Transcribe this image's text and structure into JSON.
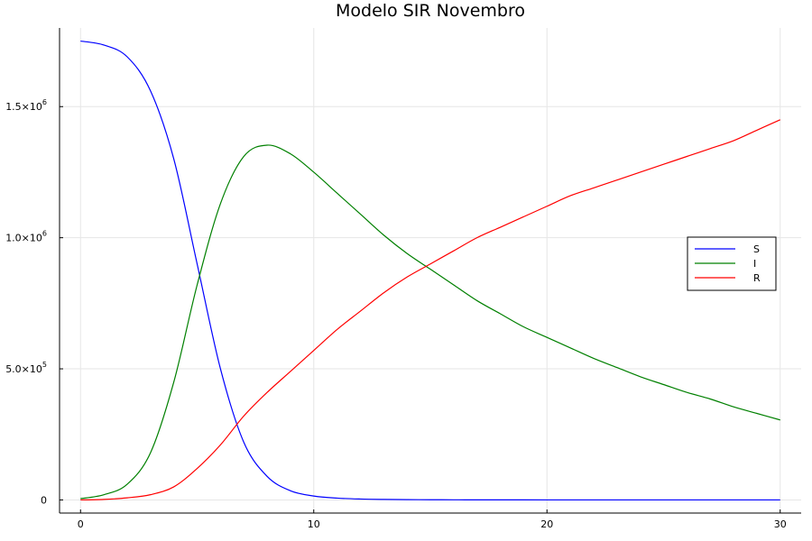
{
  "chart_data": {
    "type": "line",
    "title": "Modelo SIR Novembro",
    "xlabel": "",
    "ylabel": "",
    "xlim": [
      -0.9,
      30.9
    ],
    "ylim": [
      -50000,
      1800000
    ],
    "grid": true,
    "legend_position": "right",
    "x_ticks": [
      {
        "value": 0,
        "label": "0"
      },
      {
        "value": 10,
        "label": "10"
      },
      {
        "value": 20,
        "label": "20"
      },
      {
        "value": 30,
        "label": "30"
      }
    ],
    "y_ticks": [
      {
        "value": 0,
        "mantissa": "0",
        "exponent": ""
      },
      {
        "value": 500000,
        "mantissa": "5.0×10",
        "exponent": "5"
      },
      {
        "value": 1000000,
        "mantissa": "1.0×10",
        "exponent": "6"
      },
      {
        "value": 1500000,
        "mantissa": "1.5×10",
        "exponent": "6"
      }
    ],
    "x": [
      0,
      1,
      2,
      3,
      4,
      5,
      6,
      7,
      8,
      9,
      10,
      11,
      12,
      13,
      14,
      15,
      16,
      17,
      18,
      19,
      20,
      21,
      22,
      23,
      24,
      25,
      26,
      27,
      28,
      29,
      30
    ],
    "series": [
      {
        "name": "S",
        "color": "#0000ff",
        "values": [
          1750000,
          1735000,
          1690000,
          1560000,
          1300000,
          900000,
          500000,
          220000,
          90000,
          35000,
          15000,
          7000,
          3500,
          2000,
          1200,
          800,
          500,
          350,
          250,
          200,
          150,
          120,
          100,
          80,
          60,
          50,
          40,
          35,
          30,
          25,
          20
        ]
      },
      {
        "name": "I",
        "color": "#008000",
        "values": [
          5000,
          20000,
          60000,
          180000,
          450000,
          820000,
          1130000,
          1310000,
          1353000,
          1320000,
          1250000,
          1170000,
          1090000,
          1010000,
          940000,
          880000,
          820000,
          760000,
          710000,
          660000,
          620000,
          580000,
          540000,
          505000,
          470000,
          440000,
          410000,
          385000,
          355000,
          330000,
          305000
        ]
      },
      {
        "name": "R",
        "color": "#ff0000",
        "values": [
          0,
          2000,
          8000,
          20000,
          50000,
          120000,
          210000,
          320000,
          410000,
          490000,
          570000,
          650000,
          720000,
          790000,
          850000,
          900000,
          950000,
          1000000,
          1040000,
          1080000,
          1120000,
          1160000,
          1190000,
          1220000,
          1250000,
          1280000,
          1310000,
          1340000,
          1370000,
          1410000,
          1450000
        ]
      }
    ]
  }
}
